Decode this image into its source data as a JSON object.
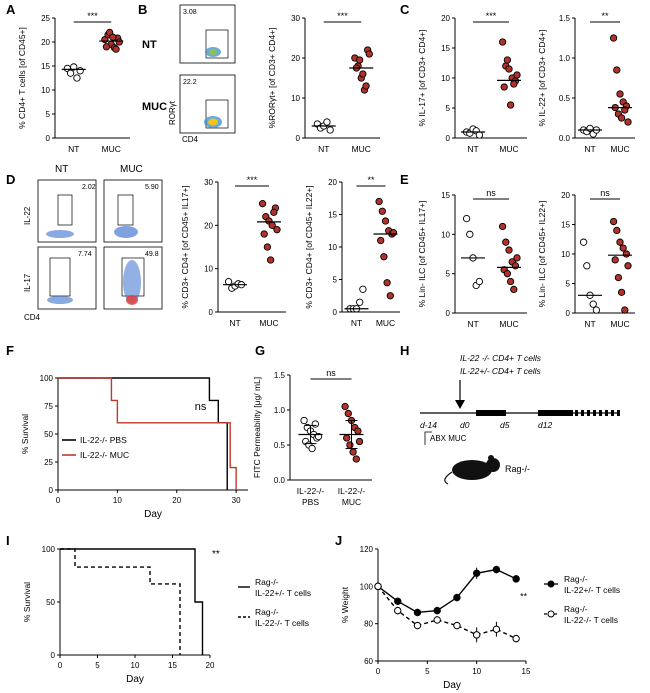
{
  "panel_letters": [
    "A",
    "B",
    "C",
    "D",
    "E",
    "F",
    "G",
    "H",
    "I",
    "J"
  ],
  "flow": {
    "B": {
      "rows": [
        "NT",
        "MUC"
      ],
      "gates": [
        "3.08",
        "22.2"
      ],
      "ylabel": "RORγt",
      "xlabel": "CD4"
    },
    "D": {
      "cols": [
        "NT",
        "MUC"
      ],
      "rows": [
        "IL-22",
        "IL-17"
      ],
      "gates": [
        "2.02",
        "5.90",
        "7.74",
        "49.8"
      ],
      "xlabel": "CD4"
    }
  },
  "schematic": {
    "line1": "IL-22 -/- CD4+ T cells",
    "line2": "IL-22+/- CD4+ T cells",
    "days": [
      "d-14",
      "d0",
      "d5",
      "d12"
    ],
    "abx": "ABX MUC",
    "mouse": "Rag-/-"
  },
  "chart_data": [
    {
      "id": "A",
      "type": "scatter",
      "ylabel": "% CD4+ T cells [of CD45+]",
      "categories": [
        "NT",
        "MUC"
      ],
      "ylim": [
        0,
        25
      ],
      "yticks": [
        0,
        5,
        10,
        15,
        20,
        25
      ],
      "sig": "***",
      "series": [
        {
          "values": [
            14.5,
            13.5,
            14.8,
            12.5,
            14.0
          ],
          "style": "open"
        },
        {
          "values": [
            20.5,
            21.5,
            19.5,
            18.8,
            20.8,
            19.0,
            22.0,
            21.0,
            18.5,
            20.0
          ],
          "style": "filled"
        }
      ],
      "medians": [
        14.3,
        20.2
      ]
    },
    {
      "id": "B",
      "type": "scatter",
      "ylabel": "%RORγt+ [of CD3+ CD4+]",
      "categories": [
        "NT",
        "MUC"
      ],
      "ylim": [
        0,
        30
      ],
      "yticks": [
        0,
        10,
        20,
        30
      ],
      "sig": "***",
      "series": [
        {
          "values": [
            3.5,
            2.5,
            3.0,
            4.0,
            2.0
          ],
          "style": "open"
        },
        {
          "values": [
            20.0,
            18.0,
            15.0,
            12.0,
            22.0,
            17.5,
            19.5,
            16.0,
            13.0,
            21.0
          ],
          "style": "filled"
        }
      ],
      "medians": [
        3.0,
        17.5
      ]
    },
    {
      "id": "C1",
      "type": "scatter",
      "ylabel": "% IL-17+ [of CD3+ CD4+]",
      "categories": [
        "NT",
        "MUC"
      ],
      "ylim": [
        0,
        20
      ],
      "yticks": [
        0,
        5,
        10,
        15,
        20
      ],
      "sig": "***",
      "series": [
        {
          "values": [
            1.0,
            0.8,
            1.5,
            1.2,
            0.5
          ],
          "style": "open"
        },
        {
          "values": [
            16.0,
            12.0,
            11.5,
            10.0,
            9.5,
            8.5,
            13.0,
            5.5,
            9.0,
            10.5
          ],
          "style": "filled"
        }
      ],
      "medians": [
        1.0,
        9.6
      ]
    },
    {
      "id": "C2",
      "type": "scatter",
      "ylabel": "% IL-22+ [of CD3+ CD4+]",
      "categories": [
        "NT",
        "MUC"
      ],
      "ylim": [
        0,
        1.5
      ],
      "yticks": [
        0.0,
        0.5,
        1.0,
        1.5
      ],
      "sig": "**",
      "series": [
        {
          "values": [
            0.1,
            0.08,
            0.12,
            0.05,
            0.1
          ],
          "style": "open"
        },
        {
          "values": [
            1.25,
            0.85,
            0.55,
            0.45,
            0.4,
            0.38,
            0.3,
            0.25,
            0.35,
            0.2
          ],
          "style": "filled"
        }
      ],
      "medians": [
        0.1,
        0.38
      ]
    },
    {
      "id": "D1",
      "type": "scatter",
      "ylabel": "% CD3+ CD4+ [of CD45+ IL17+]",
      "categories": [
        "NT",
        "MUC"
      ],
      "ylim": [
        0,
        30
      ],
      "yticks": [
        0,
        10,
        20,
        30
      ],
      "sig": "***",
      "series": [
        {
          "values": [
            7.0,
            5.5,
            6.0,
            6.5,
            6.3
          ],
          "style": "open"
        },
        {
          "values": [
            25.0,
            22.0,
            21.0,
            20.0,
            24.0,
            18.0,
            15.0,
            12.0,
            23.0,
            19.0
          ],
          "style": "filled"
        }
      ],
      "medians": [
        6.3,
        20.8
      ]
    },
    {
      "id": "D2",
      "type": "scatter",
      "ylabel": "% CD3+ CD4+ [of CD45+ IL22+]",
      "categories": [
        "NT",
        "MUC"
      ],
      "ylim": [
        0,
        20
      ],
      "yticks": [
        0,
        5,
        10,
        15,
        20
      ],
      "sig": "**",
      "series": [
        {
          "values": [
            0.5,
            0.5,
            0.5,
            1.5,
            3.5
          ],
          "style": "open"
        },
        {
          "values": [
            17.0,
            15.5,
            14.0,
            12.5,
            12.0,
            11.0,
            8.5,
            4.5,
            2.5,
            12.2
          ],
          "style": "filled"
        }
      ],
      "medians": [
        0.5,
        12.0
      ]
    },
    {
      "id": "E1",
      "type": "scatter",
      "ylabel": "% Lin- ILC [of CD45+ IL17+]",
      "categories": [
        "NT",
        "MUC"
      ],
      "ylim": [
        0,
        15
      ],
      "yticks": [
        0,
        5,
        10,
        15
      ],
      "sig": "ns",
      "series": [
        {
          "values": [
            12.0,
            10.0,
            7.0,
            3.5,
            4.0
          ],
          "style": "open"
        },
        {
          "values": [
            11.0,
            9.0,
            8.0,
            6.5,
            6.0,
            5.5,
            5.0,
            4.0,
            3.0,
            7.0
          ],
          "style": "filled"
        }
      ],
      "medians": [
        7.0,
        5.8
      ]
    },
    {
      "id": "E2",
      "type": "scatter",
      "ylabel": "% Lin- ILC [of CD45+ IL22+]",
      "categories": [
        "NT",
        "MUC"
      ],
      "ylim": [
        0,
        20
      ],
      "yticks": [
        0,
        5,
        10,
        15,
        20
      ],
      "sig": "ns",
      "series": [
        {
          "values": [
            12.0,
            8.0,
            3.0,
            1.5,
            0.5
          ],
          "style": "open"
        },
        {
          "values": [
            15.5,
            14.0,
            12.0,
            11.0,
            10.0,
            9.0,
            6.0,
            3.5,
            0.5,
            8.0
          ],
          "style": "filled"
        }
      ],
      "medians": [
        3.0,
        9.8
      ]
    },
    {
      "id": "F",
      "type": "line",
      "ylabel": "% Survival",
      "xlabel": "Day",
      "xlim": [
        0,
        32
      ],
      "ylim": [
        0,
        100
      ],
      "xticks": [
        0,
        10,
        20,
        30
      ],
      "yticks": [
        0,
        25,
        50,
        75,
        100
      ],
      "sig": "ns",
      "series": [
        {
          "name": "IL-22-/- PBS",
          "color": "#000000",
          "x": [
            0,
            25.5,
            25.5,
            27,
            27,
            28.5,
            28.5
          ],
          "y": [
            100,
            100,
            80,
            80,
            60,
            60,
            0
          ]
        },
        {
          "name": "IL-22-/- MUC",
          "color": "#c0392b",
          "x": [
            0,
            9,
            9,
            10,
            10,
            29,
            29,
            30,
            30
          ],
          "y": [
            100,
            100,
            80,
            80,
            60,
            60,
            20,
            20,
            0
          ]
        }
      ]
    },
    {
      "id": "G",
      "type": "scatter",
      "ylabel": "FITC Permeability [μg/ mL]",
      "categories": [
        "IL-22-/- PBS",
        "IL-22-/- MUC"
      ],
      "ylim": [
        0,
        1.5
      ],
      "yticks": [
        0.0,
        0.5,
        1.0,
        1.5
      ],
      "sig": "ns",
      "series": [
        {
          "values": [
            0.85,
            0.75,
            0.7,
            0.65,
            0.6,
            0.55,
            0.5,
            0.45,
            0.8,
            0.62
          ],
          "style": "open"
        },
        {
          "values": [
            1.05,
            0.95,
            0.85,
            0.75,
            0.7,
            0.6,
            0.5,
            0.4,
            0.3,
            0.55
          ],
          "style": "filled"
        }
      ],
      "medians": [
        0.65,
        0.65
      ],
      "err": [
        0.13,
        0.2
      ]
    },
    {
      "id": "I",
      "type": "line",
      "ylabel": "% Survival",
      "xlabel": "Day",
      "xlim": [
        0,
        20
      ],
      "ylim": [
        0,
        100
      ],
      "xticks": [
        0,
        5,
        10,
        15,
        20
      ],
      "yticks": [
        0,
        50,
        100
      ],
      "sig": "**",
      "series": [
        {
          "name": "Rag-/- IL-22+/- T cells",
          "color": "#000000",
          "dash": false,
          "x": [
            0,
            18,
            18,
            19,
            19
          ],
          "y": [
            100,
            100,
            50,
            50,
            0
          ]
        },
        {
          "name": "Rag-/- IL-22-/- T cells",
          "color": "#000000",
          "dash": true,
          "x": [
            0,
            2,
            2,
            12,
            12,
            16,
            16
          ],
          "y": [
            100,
            100,
            83,
            83,
            67,
            67,
            0
          ]
        }
      ]
    },
    {
      "id": "J",
      "type": "line",
      "ylabel": "% Weight",
      "xlabel": "Day",
      "xlim": [
        0,
        15
      ],
      "ylim": [
        60,
        120
      ],
      "xticks": [
        0,
        5,
        10,
        15
      ],
      "yticks": [
        60,
        80,
        100,
        120
      ],
      "sig": "**",
      "series": [
        {
          "name": "Rag-/- IL-22+/- T cells",
          "marker": "filled",
          "dash": false,
          "x": [
            0,
            2,
            4,
            6,
            8,
            10,
            12,
            14
          ],
          "y": [
            100,
            92,
            86,
            87,
            94,
            107,
            109,
            104
          ],
          "err": [
            1,
            2,
            2,
            2,
            2,
            3,
            2,
            2
          ]
        },
        {
          "name": "Rag-/- IL-22-/- T cells",
          "marker": "open",
          "dash": true,
          "x": [
            0,
            2,
            4,
            6,
            8,
            10,
            12,
            14
          ],
          "y": [
            100,
            87,
            79,
            82,
            79,
            74,
            77,
            72
          ],
          "err": [
            1,
            2,
            2,
            2,
            2,
            4,
            4,
            2
          ]
        }
      ]
    }
  ]
}
